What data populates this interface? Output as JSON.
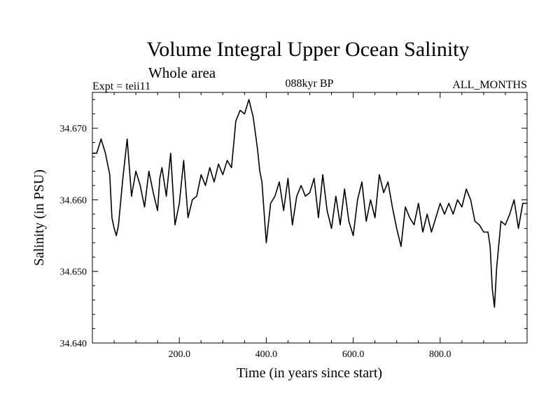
{
  "chart_data": {
    "type": "line",
    "title": "Volume Integral Upper Ocean Salinity",
    "subtitle": "Whole area",
    "left_annotation": "Expt = teii11",
    "center_annotation": "088kyr BP",
    "right_annotation": "ALL_MONTHS",
    "xlabel": "Time (in years since start)",
    "ylabel": "Salinity (in PSU)",
    "xlim": [
      0,
      1000
    ],
    "ylim": [
      34.64,
      34.675
    ],
    "x_ticks": [
      200,
      400,
      600,
      800
    ],
    "x_tick_labels": [
      "200.0",
      "400.0",
      "600.0",
      "800.0"
    ],
    "y_ticks": [
      34.64,
      34.65,
      34.66,
      34.67
    ],
    "y_tick_labels": [
      "34.640",
      "34.650",
      "34.660",
      "34.670"
    ],
    "grid": false,
    "series": [
      {
        "color": "#000000",
        "x": [
          0,
          10,
          20,
          30,
          40,
          45,
          50,
          55,
          60,
          70,
          80,
          90,
          100,
          110,
          120,
          130,
          140,
          150,
          155,
          160,
          170,
          180,
          190,
          200,
          210,
          220,
          230,
          240,
          250,
          260,
          270,
          280,
          290,
          300,
          310,
          320,
          330,
          340,
          350,
          360,
          370,
          380,
          385,
          390,
          400,
          410,
          420,
          430,
          440,
          450,
          460,
          470,
          480,
          490,
          500,
          510,
          520,
          530,
          540,
          550,
          560,
          570,
          580,
          590,
          600,
          610,
          620,
          630,
          640,
          650,
          660,
          670,
          680,
          690,
          700,
          710,
          720,
          730,
          740,
          750,
          760,
          770,
          780,
          790,
          800,
          810,
          820,
          830,
          840,
          850,
          860,
          870,
          880,
          890,
          900,
          910,
          915,
          920,
          925,
          930,
          940,
          950,
          960,
          970,
          980,
          990,
          1000
        ],
        "y": [
          34.6665,
          34.6665,
          34.6685,
          34.6665,
          34.6635,
          34.6575,
          34.656,
          34.655,
          34.6565,
          34.663,
          34.6685,
          34.6605,
          34.664,
          34.662,
          34.659,
          34.664,
          34.661,
          34.6585,
          34.663,
          34.6645,
          34.6605,
          34.6665,
          34.6565,
          34.6595,
          34.6655,
          34.6575,
          34.66,
          34.6605,
          34.6635,
          34.662,
          34.6645,
          34.6625,
          34.665,
          34.6635,
          34.6655,
          34.6645,
          34.671,
          34.6725,
          34.672,
          34.674,
          34.6715,
          34.667,
          34.664,
          34.6625,
          34.654,
          34.6595,
          34.6605,
          34.6625,
          34.6585,
          34.663,
          34.6565,
          34.6605,
          34.662,
          34.6605,
          34.661,
          34.663,
          34.6575,
          34.6635,
          34.6585,
          34.656,
          34.6605,
          34.6565,
          34.6615,
          34.657,
          34.655,
          34.66,
          34.6625,
          34.657,
          34.66,
          34.6575,
          34.6635,
          34.661,
          34.6625,
          34.659,
          34.656,
          34.6535,
          34.659,
          34.6575,
          34.6565,
          34.6595,
          34.6555,
          34.658,
          34.6555,
          34.6575,
          34.6595,
          34.658,
          34.6595,
          34.658,
          34.66,
          34.659,
          34.6615,
          34.66,
          34.657,
          34.6565,
          34.6555,
          34.6555,
          34.6535,
          34.6475,
          34.645,
          34.6505,
          34.657,
          34.6565,
          34.658,
          34.66,
          34.656,
          34.6595,
          34.6595
        ]
      }
    ]
  }
}
